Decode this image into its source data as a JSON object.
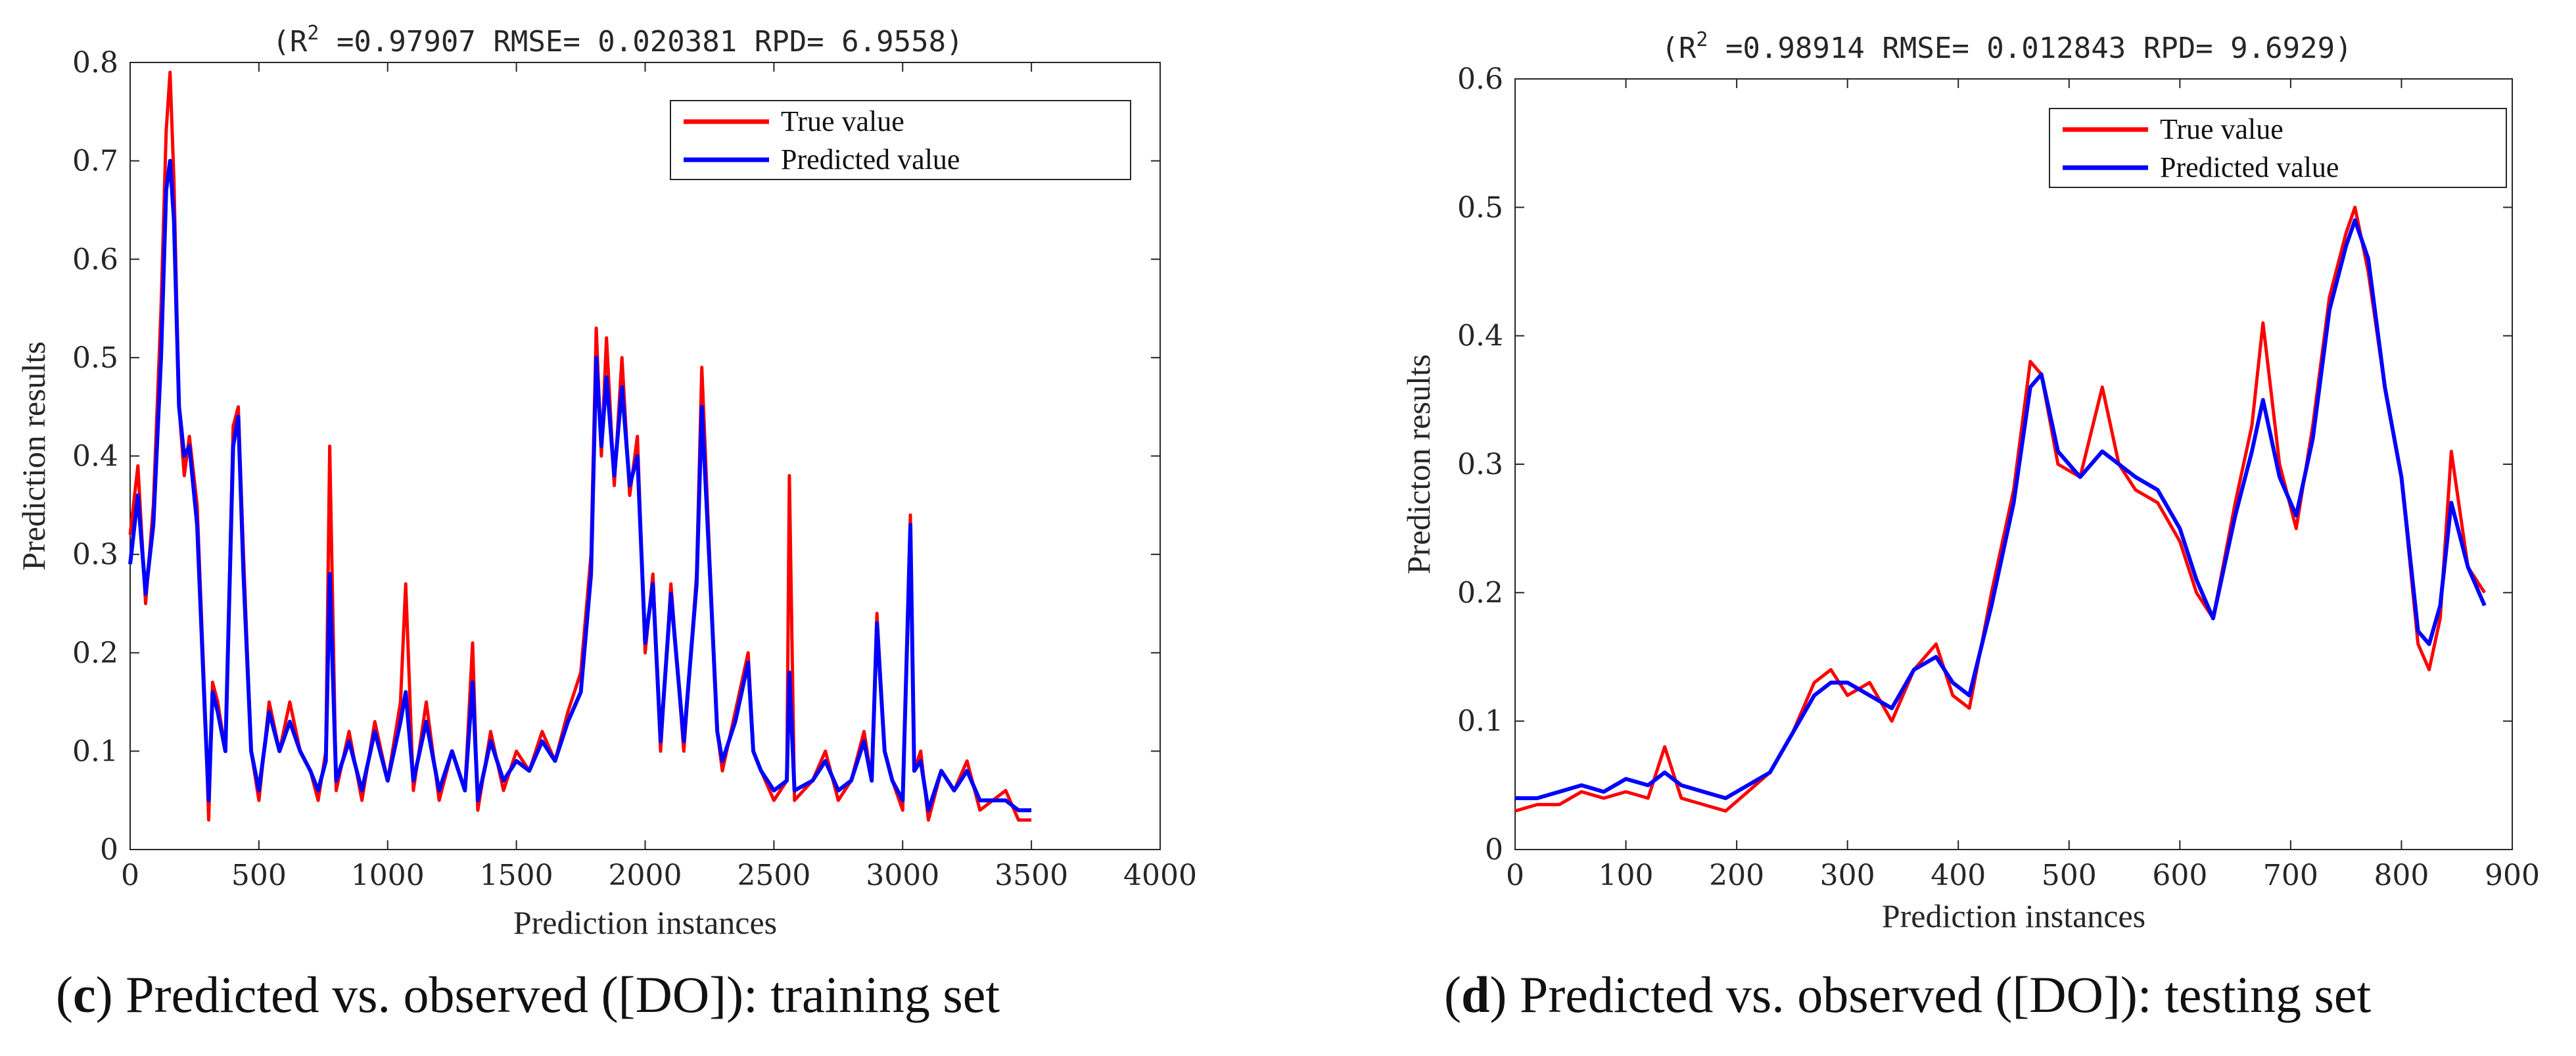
{
  "chart_data": [
    {
      "id": "c",
      "type": "line",
      "title": "(R^2 =0.97907 RMSE= 0.020381 RPD= 6.9558)",
      "title_parts": {
        "prefix": "(R",
        "sup": "2",
        "rest": " =0.97907 RMSE= 0.020381 RPD= 6.9558)"
      },
      "xlabel": "Prediction instances",
      "ylabel": "Prediction results",
      "xlim": [
        0,
        4000
      ],
      "ylim": [
        0,
        0.8
      ],
      "xticks": [
        0,
        500,
        1000,
        1500,
        2000,
        2500,
        3000,
        3500,
        4000
      ],
      "yticks": [
        0,
        0.1,
        0.2,
        0.3,
        0.4,
        0.5,
        0.6,
        0.7,
        0.8
      ],
      "legend_position": "top-right",
      "colors": {
        "true": "#ff0000",
        "pred": "#0000ff"
      },
      "series": [
        {
          "name": "True value",
          "key": "true"
        },
        {
          "name": "Predicted value",
          "key": "pred"
        }
      ],
      "x": [
        0,
        30,
        60,
        90,
        120,
        140,
        155,
        170,
        190,
        210,
        230,
        260,
        290,
        305,
        320,
        340,
        370,
        400,
        420,
        440,
        470,
        500,
        540,
        580,
        620,
        660,
        700,
        730,
        760,
        775,
        800,
        850,
        900,
        950,
        1000,
        1050,
        1070,
        1100,
        1150,
        1200,
        1250,
        1300,
        1330,
        1350,
        1400,
        1450,
        1500,
        1550,
        1600,
        1650,
        1700,
        1750,
        1790,
        1810,
        1830,
        1850,
        1880,
        1910,
        1940,
        1970,
        2000,
        2030,
        2060,
        2100,
        2150,
        2200,
        2220,
        2250,
        2280,
        2300,
        2350,
        2400,
        2420,
        2450,
        2500,
        2550,
        2560,
        2580,
        2650,
        2700,
        2750,
        2800,
        2850,
        2880,
        2900,
        2930,
        2960,
        3000,
        3030,
        3045,
        3070,
        3100,
        3150,
        3200,
        3250,
        3300,
        3350,
        3400,
        3450,
        3500
      ],
      "true_values": [
        0.32,
        0.39,
        0.25,
        0.35,
        0.55,
        0.73,
        0.79,
        0.68,
        0.45,
        0.38,
        0.42,
        0.35,
        0.15,
        0.03,
        0.17,
        0.15,
        0.1,
        0.43,
        0.45,
        0.3,
        0.1,
        0.05,
        0.15,
        0.1,
        0.15,
        0.1,
        0.08,
        0.05,
        0.1,
        0.41,
        0.06,
        0.12,
        0.05,
        0.13,
        0.07,
        0.15,
        0.27,
        0.06,
        0.15,
        0.05,
        0.1,
        0.06,
        0.21,
        0.04,
        0.12,
        0.06,
        0.1,
        0.08,
        0.12,
        0.09,
        0.14,
        0.18,
        0.3,
        0.53,
        0.4,
        0.52,
        0.37,
        0.5,
        0.36,
        0.42,
        0.2,
        0.28,
        0.1,
        0.27,
        0.1,
        0.28,
        0.49,
        0.3,
        0.12,
        0.08,
        0.14,
        0.2,
        0.1,
        0.08,
        0.05,
        0.07,
        0.38,
        0.05,
        0.07,
        0.1,
        0.05,
        0.07,
        0.12,
        0.07,
        0.24,
        0.1,
        0.07,
        0.04,
        0.34,
        0.08,
        0.1,
        0.03,
        0.08,
        0.06,
        0.09,
        0.04,
        0.05,
        0.06,
        0.03,
        0.03
      ],
      "pred_values": [
        0.29,
        0.36,
        0.26,
        0.33,
        0.5,
        0.67,
        0.7,
        0.64,
        0.45,
        0.4,
        0.41,
        0.33,
        0.14,
        0.05,
        0.16,
        0.14,
        0.1,
        0.41,
        0.44,
        0.28,
        0.1,
        0.06,
        0.14,
        0.1,
        0.13,
        0.1,
        0.08,
        0.06,
        0.09,
        0.28,
        0.07,
        0.11,
        0.06,
        0.12,
        0.07,
        0.13,
        0.16,
        0.07,
        0.13,
        0.06,
        0.1,
        0.06,
        0.17,
        0.05,
        0.11,
        0.07,
        0.09,
        0.08,
        0.11,
        0.09,
        0.13,
        0.16,
        0.28,
        0.5,
        0.41,
        0.48,
        0.38,
        0.47,
        0.37,
        0.4,
        0.21,
        0.27,
        0.11,
        0.26,
        0.11,
        0.27,
        0.45,
        0.29,
        0.12,
        0.09,
        0.13,
        0.19,
        0.1,
        0.08,
        0.06,
        0.07,
        0.18,
        0.06,
        0.07,
        0.09,
        0.06,
        0.07,
        0.11,
        0.07,
        0.23,
        0.1,
        0.07,
        0.05,
        0.33,
        0.08,
        0.09,
        0.04,
        0.08,
        0.06,
        0.08,
        0.05,
        0.05,
        0.05,
        0.04,
        0.04
      ]
    },
    {
      "id": "d",
      "type": "line",
      "title": "(R^2 =0.98914 RMSE= 0.012843 RPD= 9.6929)",
      "title_parts": {
        "prefix": "(R",
        "sup": "2",
        "rest": " =0.98914 RMSE= 0.012843 RPD= 9.6929)"
      },
      "xlabel": "Prediction instances",
      "ylabel": "Predicton results",
      "xlim": [
        0,
        900
      ],
      "ylim": [
        0,
        0.6
      ],
      "xticks": [
        0,
        100,
        200,
        300,
        400,
        500,
        600,
        700,
        800,
        900
      ],
      "yticks": [
        0,
        0.1,
        0.2,
        0.3,
        0.4,
        0.5,
        0.6
      ],
      "legend_position": "top-right",
      "colors": {
        "true": "#ff0000",
        "pred": "#0000ff"
      },
      "series": [
        {
          "name": "True value",
          "key": "true"
        },
        {
          "name": "Predicted value",
          "key": "pred"
        }
      ],
      "x": [
        0,
        20,
        40,
        60,
        80,
        100,
        120,
        135,
        150,
        170,
        190,
        210,
        230,
        250,
        270,
        285,
        300,
        320,
        340,
        360,
        380,
        395,
        410,
        430,
        450,
        465,
        475,
        490,
        510,
        530,
        545,
        560,
        580,
        600,
        615,
        630,
        650,
        665,
        675,
        690,
        705,
        720,
        735,
        750,
        758,
        770,
        785,
        800,
        815,
        825,
        835,
        845,
        860,
        875
      ],
      "true_values": [
        0.03,
        0.035,
        0.035,
        0.045,
        0.04,
        0.045,
        0.04,
        0.08,
        0.04,
        0.035,
        0.03,
        0.045,
        0.06,
        0.09,
        0.13,
        0.14,
        0.12,
        0.13,
        0.1,
        0.14,
        0.16,
        0.12,
        0.11,
        0.2,
        0.28,
        0.38,
        0.37,
        0.3,
        0.29,
        0.36,
        0.3,
        0.28,
        0.27,
        0.24,
        0.2,
        0.18,
        0.27,
        0.33,
        0.41,
        0.3,
        0.25,
        0.33,
        0.43,
        0.48,
        0.5,
        0.45,
        0.36,
        0.29,
        0.16,
        0.14,
        0.18,
        0.31,
        0.22,
        0.2
      ],
      "pred_values": [
        0.04,
        0.04,
        0.045,
        0.05,
        0.045,
        0.055,
        0.05,
        0.06,
        0.05,
        0.045,
        0.04,
        0.05,
        0.06,
        0.09,
        0.12,
        0.13,
        0.13,
        0.12,
        0.11,
        0.14,
        0.15,
        0.13,
        0.12,
        0.19,
        0.27,
        0.36,
        0.37,
        0.31,
        0.29,
        0.31,
        0.3,
        0.29,
        0.28,
        0.25,
        0.21,
        0.18,
        0.26,
        0.31,
        0.35,
        0.29,
        0.26,
        0.32,
        0.42,
        0.47,
        0.49,
        0.46,
        0.36,
        0.29,
        0.17,
        0.16,
        0.19,
        0.27,
        0.22,
        0.19
      ]
    }
  ],
  "captions": {
    "c": {
      "letter": "c",
      "text": "Predicted vs. observed ([DO]): training set"
    },
    "d": {
      "letter": "d",
      "text": "Predicted vs. observed ([DO]): testing set"
    }
  }
}
